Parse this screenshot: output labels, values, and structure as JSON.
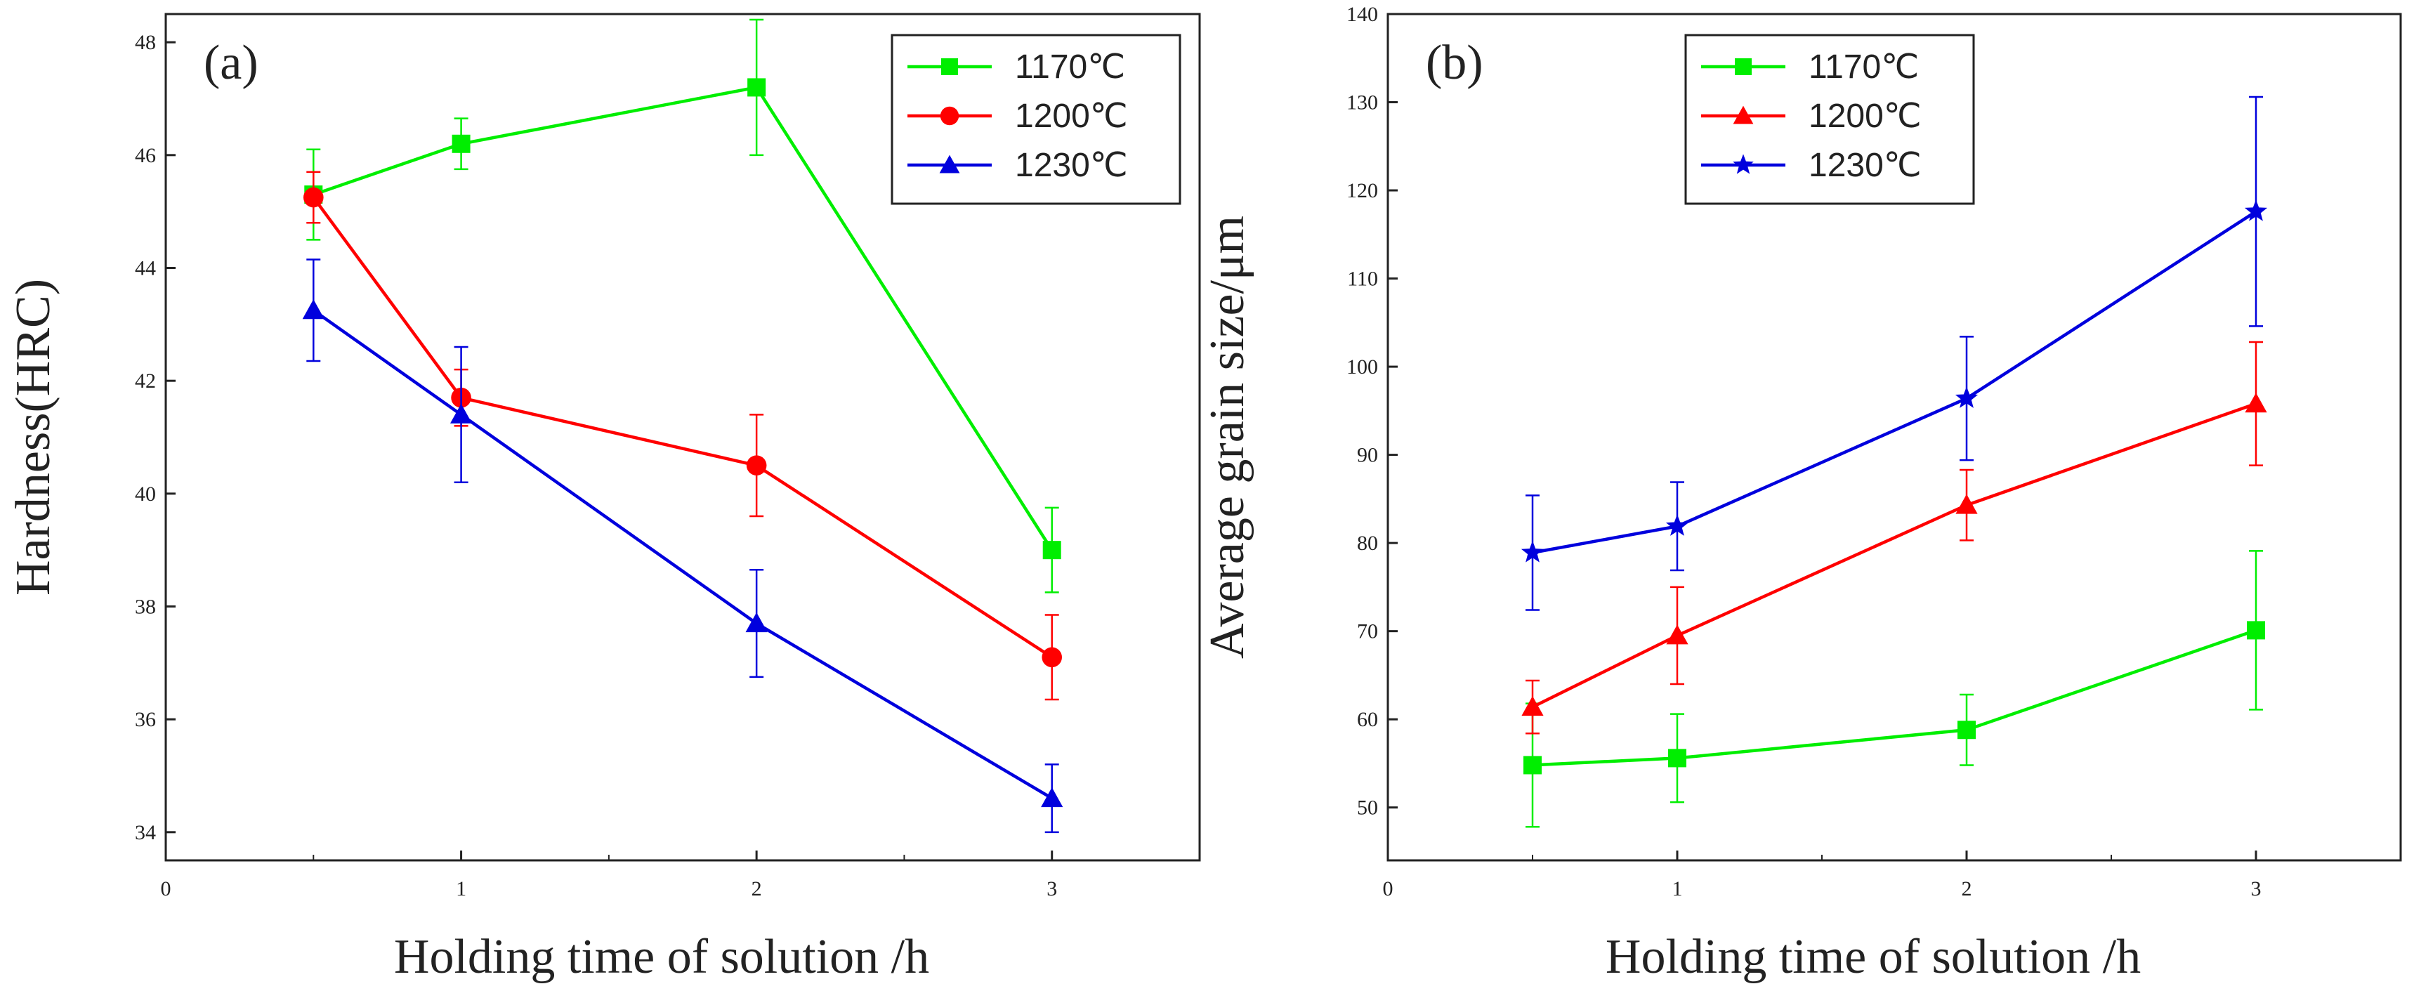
{
  "chart_data": [
    {
      "type": "line",
      "panel_label": "(a)",
      "xlabel": "Holding time of solution /h",
      "ylabel": "Hardness(HRC)",
      "xlim": [
        0,
        3.5
      ],
      "ylim": [
        33.5,
        48.5
      ],
      "x_ticks": [
        0,
        1,
        2,
        3
      ],
      "x_tick_labels": [
        "0",
        "1",
        "2",
        "3"
      ],
      "y_ticks": [
        34,
        36,
        38,
        40,
        42,
        44,
        46,
        48
      ],
      "y_tick_labels": [
        "34",
        "36",
        "38",
        "40",
        "42",
        "44",
        "46",
        "48"
      ],
      "legend_position": "top-right",
      "series": [
        {
          "name": "1170℃",
          "color": "#00ee00",
          "marker": "square",
          "x": [
            0.5,
            1,
            2,
            3
          ],
          "values": [
            45.3,
            46.2,
            47.2,
            39.0
          ],
          "errors": [
            0.8,
            0.45,
            1.2,
            0.75
          ]
        },
        {
          "name": "1200℃",
          "color": "#ff0000",
          "marker": "circle",
          "x": [
            0.5,
            1,
            2,
            3
          ],
          "values": [
            45.25,
            41.7,
            40.5,
            37.1
          ],
          "errors": [
            0.45,
            0.5,
            0.9,
            0.75
          ]
        },
        {
          "name": "1230℃",
          "color": "#0000dd",
          "marker": "triangle",
          "x": [
            0.5,
            1,
            2,
            3
          ],
          "values": [
            43.25,
            41.4,
            37.7,
            34.6
          ],
          "errors": [
            0.9,
            1.2,
            0.95,
            0.6
          ]
        }
      ]
    },
    {
      "type": "line",
      "panel_label": "(b)",
      "xlabel": "Holding time of solution /h",
      "ylabel": "Average grain size/μm",
      "xlim": [
        0,
        3.5
      ],
      "ylim": [
        44,
        140
      ],
      "x_ticks": [
        0,
        1,
        2,
        3
      ],
      "x_tick_labels": [
        "0",
        "1",
        "2",
        "3"
      ],
      "y_ticks": [
        50,
        60,
        70,
        80,
        90,
        100,
        110,
        120,
        130,
        140
      ],
      "y_tick_labels": [
        "50",
        "60",
        "70",
        "80",
        "90",
        "100",
        "110",
        "120",
        "130",
        "140"
      ],
      "legend_position": "top-left",
      "series": [
        {
          "name": "1170℃",
          "color": "#00ee00",
          "marker": "square",
          "x": [
            0.5,
            1,
            2,
            3
          ],
          "values": [
            54.8,
            55.6,
            58.8,
            70.1
          ],
          "errors": [
            7.0,
            5.0,
            4.0,
            9.0
          ]
        },
        {
          "name": "1200℃",
          "color": "#ff0000",
          "marker": "triangle",
          "x": [
            0.5,
            1,
            2,
            3
          ],
          "values": [
            61.4,
            69.5,
            84.3,
            95.8
          ],
          "errors": [
            3.0,
            5.5,
            4.0,
            7.0
          ]
        },
        {
          "name": "1230℃",
          "color": "#0000dd",
          "marker": "star",
          "x": [
            0.5,
            1,
            2,
            3
          ],
          "values": [
            78.9,
            81.9,
            96.4,
            117.6
          ],
          "errors": [
            6.5,
            5.0,
            7.0,
            13.0
          ]
        }
      ]
    }
  ]
}
